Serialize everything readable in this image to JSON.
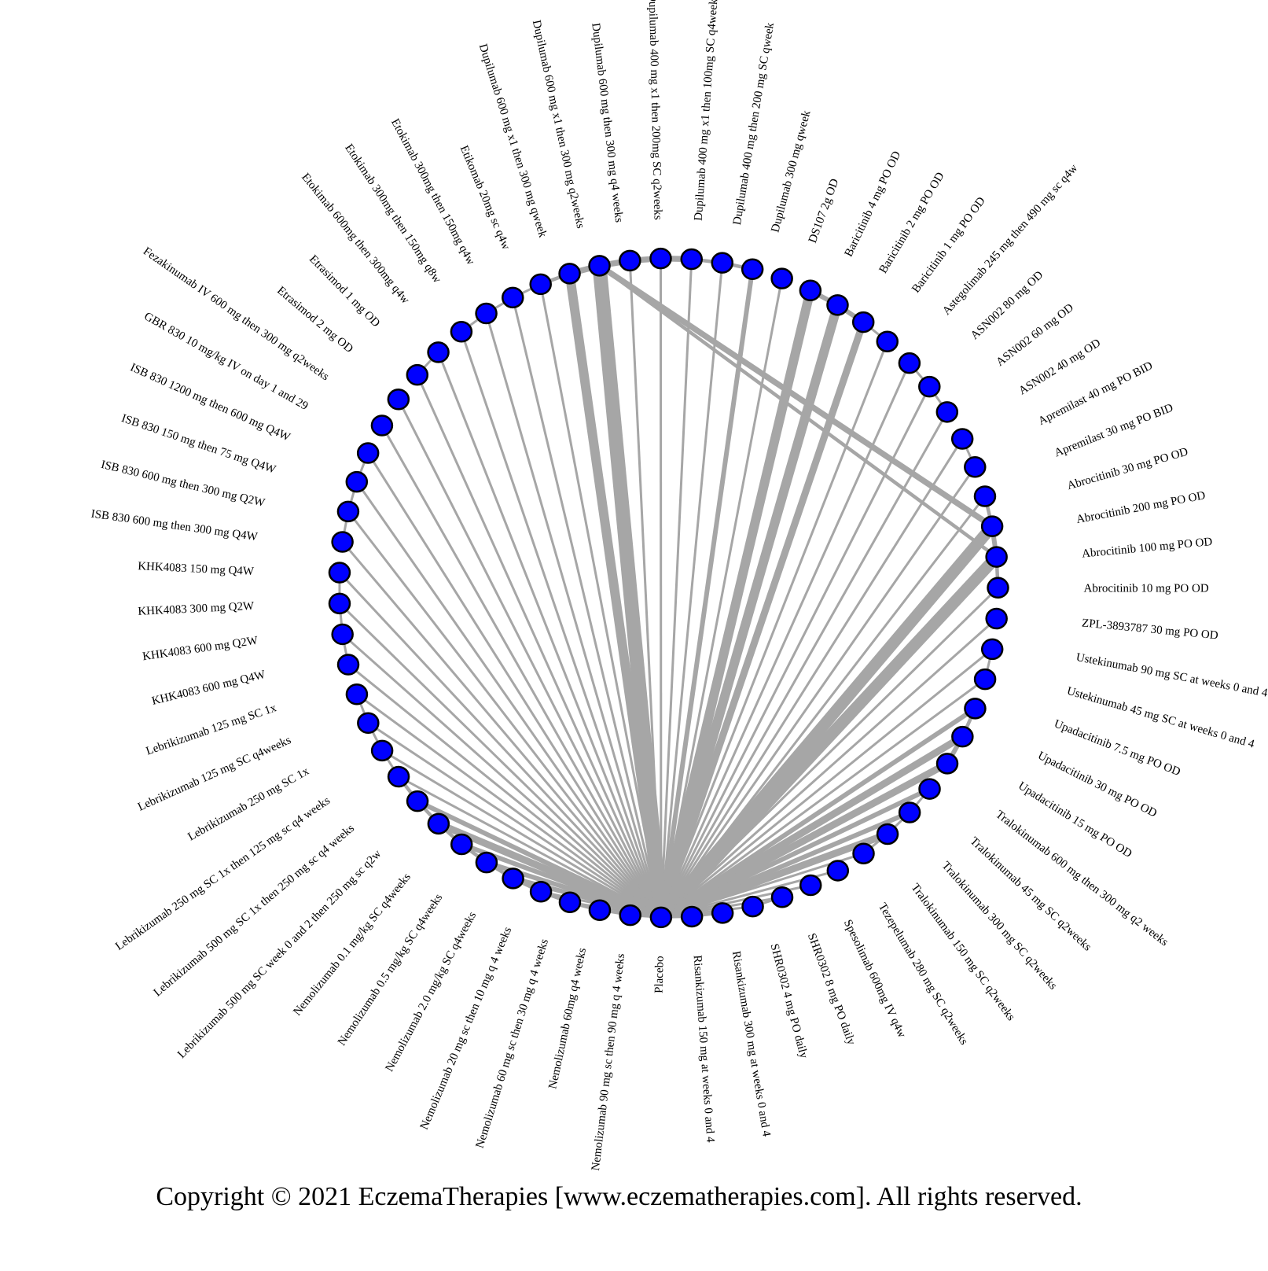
{
  "colors": {
    "node_fill": "#0000ff",
    "node_stroke": "#000000",
    "edge": "#a6a6a6",
    "label": "#000000"
  },
  "nodes": [
    {
      "label": "Dupilumab 400 mg x1 then 200mg SC q2weeks"
    },
    {
      "label": "Dupilumab 400 mg x1 then 100mg SC q4weeks"
    },
    {
      "label": "Dupilumab 400 mg then 200 mg SC qweek"
    },
    {
      "label": "Dupilumab 300 mg qweek"
    },
    {
      "label": "DS107 2g OD"
    },
    {
      "label": "Baricitinib 4 mg PO OD"
    },
    {
      "label": "Baricitinib 2 mg PO OD"
    },
    {
      "label": "Baricitinib 1 mg PO OD"
    },
    {
      "label": "Astegolimab 245 mg then 490 mg sc q4w"
    },
    {
      "label": "ASN002 80 mg OD"
    },
    {
      "label": "ASN002 60 mg OD"
    },
    {
      "label": "ASN002 40 mg OD"
    },
    {
      "label": "Apremilast 40 mg PO BID"
    },
    {
      "label": "Apremilast 30 mg PO BID"
    },
    {
      "label": "Abrocitinib 30 mg PO OD"
    },
    {
      "label": "Abrocitinib 200 mg PO OD"
    },
    {
      "label": "Abrocitinib 100 mg PO OD"
    },
    {
      "label": "Abrocitinib 10 mg PO OD"
    },
    {
      "label": "ZPL-3893787 30 mg PO OD"
    },
    {
      "label": "Ustekinumab 90 mg SC at weeks 0 and 4"
    },
    {
      "label": "Ustekinumab 45 mg SC at weeks 0 and 4"
    },
    {
      "label": "Upadacitinib 7.5 mg PO OD"
    },
    {
      "label": "Upadacitinib 30 mg PO OD"
    },
    {
      "label": "Upadacitinib 15 mg PO OD"
    },
    {
      "label": "Tralokinumab 600 mg then 300 mg q2 weeks"
    },
    {
      "label": "Tralokinumab 45 mg SC q2weeks"
    },
    {
      "label": "Tralokinumab 300 mg SC q2weeks"
    },
    {
      "label": "Tralokinumab 150 mg SC q2weeks"
    },
    {
      "label": "Tezepelumab 280 mg SC q2weeks"
    },
    {
      "label": "Spesolimab 600mg IV q4w"
    },
    {
      "label": "SHR0302 8 mg PO daily"
    },
    {
      "label": "SHR0302 4 mg PO daily"
    },
    {
      "label": "Risankizumab 300 mg at weeks 0 and 4"
    },
    {
      "label": "Risankizumab 150 mg at weeks 0 and 4"
    },
    {
      "label": "Placebo"
    },
    {
      "label": "Nemolizumab 90 mg sc then 90 mg q 4 weeks"
    },
    {
      "label": "Nemolizumab 60mg q4 weeks"
    },
    {
      "label": "Nemolizumab 60 mg sc then 30 mg q 4 weeks"
    },
    {
      "label": "Nemolizumab 20 mg sc then 10 mg q 4 weeks"
    },
    {
      "label": "Nemolizumab 2.0 mg/kg SC q4weeks"
    },
    {
      "label": "Nemolizumab 0.5 mg/kg SC q4weeks"
    },
    {
      "label": "Nemolizumab 0.1 mg/kg SC q4weeks"
    },
    {
      "label": "Lebrikizumab 500 mg SC week 0 and 2 then 250 mg sc q2w"
    },
    {
      "label": "Lebrikizumab 500 mg SC 1x then 250 mg sc q4 weeks"
    },
    {
      "label": "Lebrikizumab 250 mg SC 1x then 125 mg sc q4 weeks"
    },
    {
      "label": "Lebrikizumab 250 mg SC 1x"
    },
    {
      "label": "Lebrikizumab 125 mg SC q4weeks"
    },
    {
      "label": "Lebrikizumab 125 mg SC 1x"
    },
    {
      "label": "KHK4083 600 mg Q4W"
    },
    {
      "label": "KHK4083 600 mg Q2W"
    },
    {
      "label": "KHK4083 300 mg Q2W"
    },
    {
      "label": "KHK4083 150 mg Q4W"
    },
    {
      "label": "ISB 830 600 mg then 300 mg Q4W"
    },
    {
      "label": "ISB 830 600 mg then 300 mg Q2W"
    },
    {
      "label": "ISB 830 150 mg then 75 mg Q4W"
    },
    {
      "label": "ISB 830 1200 mg then 600 mg Q4W"
    },
    {
      "label": "GBR 830 10 mg/kg IV on day 1 and 29"
    },
    {
      "label": "Fezakinumab IV 600 mg then 300 mg q2weeks"
    },
    {
      "label": "Etrasimod 2 mg OD"
    },
    {
      "label": "Etrasimod 1 mg OD"
    },
    {
      "label": "Etokimab 600mg then 300mg q4w"
    },
    {
      "label": "Etokimab 300mg then 150mg q8w"
    },
    {
      "label": "Etokimab 300mg then 150mg q4w"
    },
    {
      "label": "Etikomab 20mg sc q4w"
    },
    {
      "label": "Dupilumab 600 mg x1 then 300 mg qweek"
    },
    {
      "label": "Dupilumab 600 mg x1 then 300 mg q2weeks"
    },
    {
      "label": "Dupilumab 600 mg then 300 mg q4 weeks"
    }
  ],
  "edges": [
    [
      34,
      0,
      1
    ],
    [
      34,
      1,
      1
    ],
    [
      34,
      2,
      1
    ],
    [
      34,
      3,
      2
    ],
    [
      34,
      4,
      1
    ],
    [
      34,
      5,
      4
    ],
    [
      34,
      6,
      4
    ],
    [
      34,
      7,
      3
    ],
    [
      34,
      8,
      1
    ],
    [
      34,
      9,
      1
    ],
    [
      34,
      10,
      1
    ],
    [
      34,
      11,
      1
    ],
    [
      34,
      12,
      1
    ],
    [
      34,
      13,
      1
    ],
    [
      34,
      14,
      1
    ],
    [
      34,
      15,
      5
    ],
    [
      34,
      16,
      5
    ],
    [
      34,
      17,
      1
    ],
    [
      34,
      18,
      1
    ],
    [
      34,
      19,
      1
    ],
    [
      34,
      20,
      1
    ],
    [
      34,
      21,
      2
    ],
    [
      34,
      22,
      3
    ],
    [
      34,
      23,
      3
    ],
    [
      34,
      24,
      2
    ],
    [
      34,
      25,
      2
    ],
    [
      34,
      26,
      3
    ],
    [
      34,
      27,
      1
    ],
    [
      34,
      28,
      1
    ],
    [
      34,
      29,
      1
    ],
    [
      34,
      30,
      1
    ],
    [
      34,
      31,
      1
    ],
    [
      34,
      32,
      1
    ],
    [
      34,
      33,
      1
    ],
    [
      34,
      35,
      1
    ],
    [
      34,
      36,
      1
    ],
    [
      34,
      37,
      1
    ],
    [
      34,
      38,
      1
    ],
    [
      34,
      39,
      2
    ],
    [
      34,
      40,
      2
    ],
    [
      34,
      41,
      2
    ],
    [
      34,
      42,
      3
    ],
    [
      34,
      43,
      2
    ],
    [
      34,
      44,
      1
    ],
    [
      34,
      45,
      1
    ],
    [
      34,
      46,
      1
    ],
    [
      34,
      47,
      1
    ],
    [
      34,
      48,
      1
    ],
    [
      34,
      49,
      1
    ],
    [
      34,
      50,
      1
    ],
    [
      34,
      51,
      1
    ],
    [
      34,
      52,
      1
    ],
    [
      34,
      53,
      1
    ],
    [
      34,
      54,
      1
    ],
    [
      34,
      55,
      1
    ],
    [
      34,
      56,
      1
    ],
    [
      34,
      57,
      1
    ],
    [
      34,
      58,
      1
    ],
    [
      34,
      59,
      1
    ],
    [
      34,
      60,
      1
    ],
    [
      34,
      61,
      1
    ],
    [
      34,
      62,
      1
    ],
    [
      34,
      63,
      1
    ],
    [
      34,
      64,
      4
    ],
    [
      34,
      65,
      6
    ],
    [
      34,
      66,
      1
    ],
    [
      65,
      15,
      2.5
    ],
    [
      65,
      16,
      1.5
    ],
    [
      64,
      65,
      2.5
    ],
    [
      65,
      66,
      2.5
    ],
    [
      66,
      0,
      2.5
    ],
    [
      0,
      1,
      2.5
    ],
    [
      1,
      2,
      1.5
    ],
    [
      2,
      3,
      1.5
    ],
    [
      63,
      64,
      1.5
    ],
    [
      5,
      6,
      2
    ],
    [
      6,
      7,
      2
    ],
    [
      7,
      8,
      1
    ],
    [
      9,
      10,
      1
    ],
    [
      10,
      11,
      1
    ],
    [
      12,
      13,
      1
    ],
    [
      14,
      15,
      1.5
    ],
    [
      15,
      16,
      2
    ],
    [
      16,
      17,
      1.5
    ],
    [
      19,
      20,
      1
    ],
    [
      21,
      22,
      1.5
    ],
    [
      22,
      23,
      2
    ],
    [
      24,
      25,
      1
    ],
    [
      25,
      26,
      1
    ],
    [
      26,
      27,
      1
    ],
    [
      30,
      31,
      1
    ],
    [
      32,
      33,
      1
    ],
    [
      35,
      36,
      1
    ],
    [
      36,
      37,
      1.5
    ],
    [
      37,
      38,
      1.5
    ],
    [
      38,
      39,
      1.5
    ],
    [
      39,
      40,
      1.5
    ],
    [
      40,
      41,
      1.5
    ],
    [
      41,
      42,
      1.5
    ],
    [
      42,
      43,
      1.5
    ],
    [
      43,
      44,
      1.5
    ],
    [
      44,
      45,
      1
    ],
    [
      45,
      46,
      1
    ],
    [
      46,
      47,
      1
    ],
    [
      48,
      49,
      1
    ],
    [
      49,
      50,
      1
    ],
    [
      50,
      51,
      1
    ],
    [
      52,
      53,
      1
    ],
    [
      53,
      54,
      1
    ],
    [
      54,
      55,
      1
    ],
    [
      58,
      59,
      1
    ],
    [
      60,
      61,
      1
    ],
    [
      61,
      62,
      1
    ],
    [
      62,
      63,
      1
    ]
  ],
  "footer": {
    "copyright": "Copyright © 2021 EczemaTherapies [www.eczematherapies.com]. All rights reserved."
  }
}
